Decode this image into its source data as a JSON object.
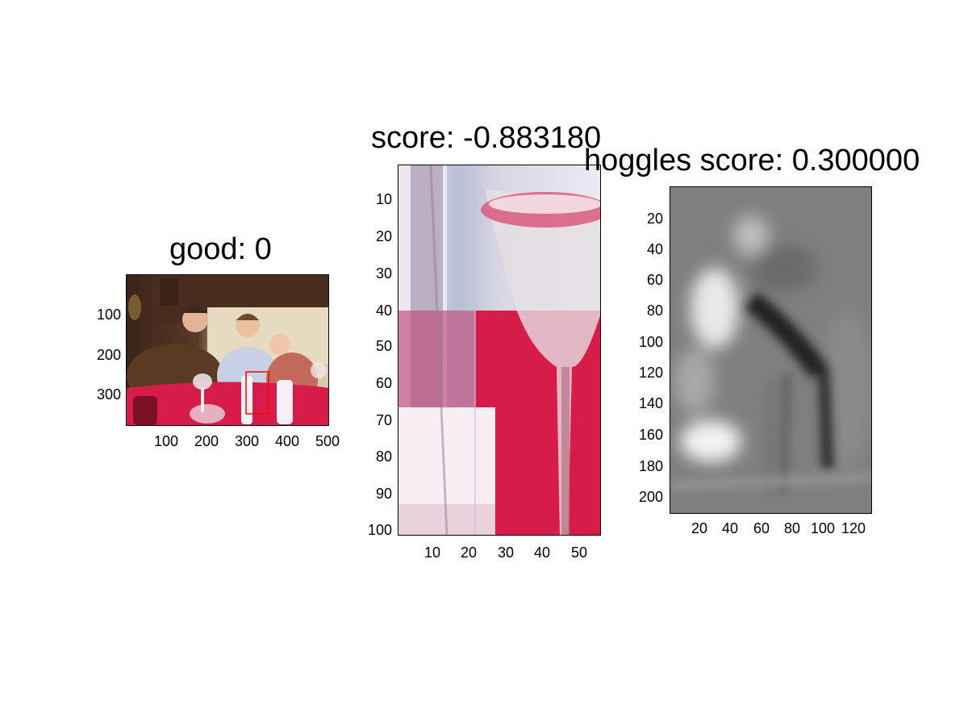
{
  "panels": [
    {
      "title": "good: 0",
      "y_ticks": [
        "100",
        "200",
        "300"
      ],
      "x_ticks": [
        "100",
        "200",
        "300",
        "400",
        "500"
      ]
    },
    {
      "title": "score: -0.883180",
      "y_ticks": [
        "10",
        "20",
        "30",
        "40",
        "50",
        "60",
        "70",
        "80",
        "90",
        "100"
      ],
      "x_ticks": [
        "10",
        "20",
        "30",
        "40",
        "50"
      ]
    },
    {
      "title": "hoggles score: 0.300000",
      "y_ticks": [
        "20",
        "40",
        "60",
        "80",
        "100",
        "120",
        "140",
        "160",
        "180",
        "200"
      ],
      "x_ticks": [
        "20",
        "40",
        "60",
        "80",
        "100",
        "120"
      ]
    }
  ],
  "colors": {
    "bbox": "#ff0000",
    "tablecloth": "#d81c4a",
    "wall": "#e8dcc0"
  }
}
